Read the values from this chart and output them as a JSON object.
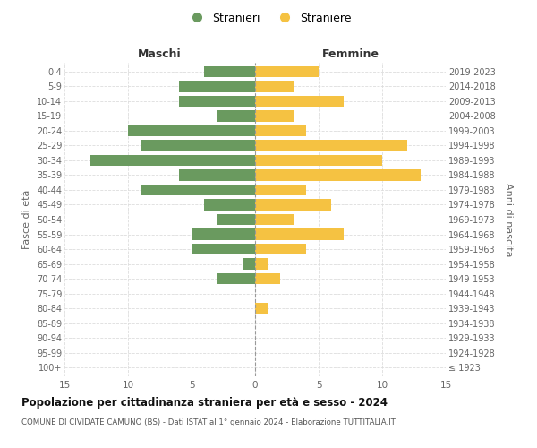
{
  "age_groups": [
    "100+",
    "95-99",
    "90-94",
    "85-89",
    "80-84",
    "75-79",
    "70-74",
    "65-69",
    "60-64",
    "55-59",
    "50-54",
    "45-49",
    "40-44",
    "35-39",
    "30-34",
    "25-29",
    "20-24",
    "15-19",
    "10-14",
    "5-9",
    "0-4"
  ],
  "birth_years": [
    "≤ 1923",
    "1924-1928",
    "1929-1933",
    "1934-1938",
    "1939-1943",
    "1944-1948",
    "1949-1953",
    "1954-1958",
    "1959-1963",
    "1964-1968",
    "1969-1973",
    "1974-1978",
    "1979-1983",
    "1984-1988",
    "1989-1993",
    "1994-1998",
    "1999-2003",
    "2004-2008",
    "2009-2013",
    "2014-2018",
    "2019-2023"
  ],
  "maschi": [
    0,
    0,
    0,
    0,
    0,
    0,
    3,
    1,
    5,
    5,
    3,
    4,
    9,
    6,
    13,
    9,
    10,
    3,
    6,
    6,
    4
  ],
  "femmine": [
    0,
    0,
    0,
    0,
    1,
    0,
    2,
    1,
    4,
    7,
    3,
    6,
    4,
    13,
    10,
    12,
    4,
    3,
    7,
    3,
    5
  ],
  "maschi_color": "#6a9a5f",
  "femmine_color": "#f5c242",
  "grid_color": "#dddddd",
  "title": "Popolazione per cittadinanza straniera per età e sesso - 2024",
  "subtitle": "COMUNE DI CIVIDATE CAMUNO (BS) - Dati ISTAT al 1° gennaio 2024 - Elaborazione TUTTITALIA.IT",
  "xlabel_left": "Maschi",
  "xlabel_right": "Femmine",
  "ylabel_left": "Fasce di età",
  "ylabel_right": "Anni di nascita",
  "xlim": 15,
  "legend_maschi": "Stranieri",
  "legend_femmine": "Straniere",
  "bar_height": 0.75
}
